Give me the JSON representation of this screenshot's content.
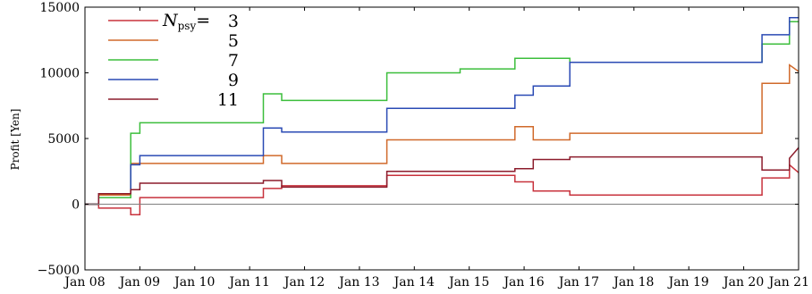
{
  "chart_data": {
    "type": "line",
    "title": "",
    "xlabel": "",
    "ylabel": "Profit [Yen]",
    "ylim": [
      -5000,
      15000
    ],
    "xlim": [
      "2000-01-08",
      "2000-01-21"
    ],
    "yticks": [
      -5000,
      0,
      5000,
      10000,
      15000
    ],
    "ytick_labels": [
      "−5000",
      "0",
      "5000",
      "10000",
      "15000"
    ],
    "xticks": [
      "Jan 08",
      "Jan 09",
      "Jan 10",
      "Jan 11",
      "Jan 12",
      "Jan 13",
      "Jan 14",
      "Jan 15",
      "Jan 16",
      "Jan 17",
      "Jan 18",
      "Jan 19",
      "Jan 20",
      "Jan 21"
    ],
    "grid": false,
    "zero_line": true,
    "legend": {
      "placement": "top-left",
      "param_symbol": "N",
      "param_subscript": "psy",
      "param_equals": "="
    },
    "series": [
      {
        "name": "3",
        "color": "#c8323c",
        "x": [
          "2000-01-08",
          "2000-01-08 06:00",
          "2000-01-08 06:00",
          "2000-01-08 20:00",
          "2000-01-08 20:00",
          "2000-01-09 00:00",
          "2000-01-09 00:00",
          "2000-01-11 06:00",
          "2000-01-11 06:00",
          "2000-01-11 14:00",
          "2000-01-11 14:00",
          "2000-01-13 12:00",
          "2000-01-13 12:00",
          "2000-01-15 20:00",
          "2000-01-15 20:00",
          "2000-01-16 04:00",
          "2000-01-16 04:00",
          "2000-01-16 20:00",
          "2000-01-16 20:00",
          "2000-01-20 08:00",
          "2000-01-20 08:00",
          "2000-01-20 20:00",
          "2000-01-20 20:00",
          "2000-01-21"
        ],
        "values": [
          0,
          0,
          -300,
          -300,
          -800,
          -800,
          500,
          500,
          1200,
          1200,
          1400,
          1400,
          2200,
          2200,
          1700,
          1700,
          1000,
          1000,
          700,
          700,
          2000,
          2000,
          3000,
          2400
        ]
      },
      {
        "name": "5",
        "color": "#d0692a",
        "x": [
          "2000-01-08",
          "2000-01-08 06:00",
          "2000-01-08 06:00",
          "2000-01-08 20:00",
          "2000-01-08 20:00",
          "2000-01-11 06:00",
          "2000-01-11 06:00",
          "2000-01-11 14:00",
          "2000-01-11 14:00",
          "2000-01-13 12:00",
          "2000-01-13 12:00",
          "2000-01-15 20:00",
          "2000-01-15 20:00",
          "2000-01-16 04:00",
          "2000-01-16 04:00",
          "2000-01-16 20:00",
          "2000-01-16 20:00",
          "2000-01-20 08:00",
          "2000-01-20 08:00",
          "2000-01-20 20:00",
          "2000-01-20 20:00",
          "2000-01-21"
        ],
        "values": [
          0,
          0,
          700,
          700,
          3100,
          3100,
          3700,
          3700,
          3100,
          3100,
          4900,
          4900,
          5900,
          5900,
          4900,
          4900,
          5400,
          5400,
          9200,
          9200,
          10600,
          10100
        ]
      },
      {
        "name": "7",
        "color": "#3cbe3c",
        "x": [
          "2000-01-08",
          "2000-01-08 06:00",
          "2000-01-08 06:00",
          "2000-01-08 20:00",
          "2000-01-08 20:00",
          "2000-01-09 00:00",
          "2000-01-09 00:00",
          "2000-01-11 06:00",
          "2000-01-11 06:00",
          "2000-01-11 14:00",
          "2000-01-11 14:00",
          "2000-01-13 12:00",
          "2000-01-13 12:00",
          "2000-01-14 20:00",
          "2000-01-14 20:00",
          "2000-01-15 20:00",
          "2000-01-15 20:00",
          "2000-01-16 20:00",
          "2000-01-16 20:00",
          "2000-01-20 08:00",
          "2000-01-20 08:00",
          "2000-01-20 20:00",
          "2000-01-20 20:00",
          "2000-01-21"
        ],
        "values": [
          0,
          0,
          500,
          500,
          5400,
          5400,
          6200,
          6200,
          8400,
          8400,
          7900,
          7900,
          10000,
          10000,
          10300,
          10300,
          11100,
          11100,
          10800,
          10800,
          12200,
          12200,
          13900,
          13900
        ]
      },
      {
        "name": "9",
        "color": "#2a4ab4",
        "x": [
          "2000-01-08",
          "2000-01-08 06:00",
          "2000-01-08 06:00",
          "2000-01-08 20:00",
          "2000-01-08 20:00",
          "2000-01-09 00:00",
          "2000-01-09 00:00",
          "2000-01-11 06:00",
          "2000-01-11 06:00",
          "2000-01-11 14:00",
          "2000-01-11 14:00",
          "2000-01-13 12:00",
          "2000-01-13 12:00",
          "2000-01-15 20:00",
          "2000-01-15 20:00",
          "2000-01-16 04:00",
          "2000-01-16 04:00",
          "2000-01-16 20:00",
          "2000-01-16 20:00",
          "2000-01-20 08:00",
          "2000-01-20 08:00",
          "2000-01-20 20:00",
          "2000-01-20 20:00",
          "2000-01-21"
        ],
        "values": [
          0,
          0,
          800,
          800,
          3000,
          3000,
          3700,
          3700,
          5800,
          5800,
          5500,
          5500,
          7300,
          7300,
          8300,
          8300,
          9000,
          9000,
          10800,
          10800,
          12900,
          12900,
          14200,
          14200
        ]
      },
      {
        "name": "11",
        "color": "#8c1c2c",
        "x": [
          "2000-01-08",
          "2000-01-08 06:00",
          "2000-01-08 06:00",
          "2000-01-08 20:00",
          "2000-01-08 20:00",
          "2000-01-09 00:00",
          "2000-01-09 00:00",
          "2000-01-11 06:00",
          "2000-01-11 06:00",
          "2000-01-11 14:00",
          "2000-01-11 14:00",
          "2000-01-13 12:00",
          "2000-01-13 12:00",
          "2000-01-15 20:00",
          "2000-01-15 20:00",
          "2000-01-16 04:00",
          "2000-01-16 04:00",
          "2000-01-16 20:00",
          "2000-01-16 20:00",
          "2000-01-20 08:00",
          "2000-01-20 08:00",
          "2000-01-20 20:00",
          "2000-01-20 20:00",
          "2000-01-21"
        ],
        "values": [
          0,
          0,
          800,
          800,
          1100,
          1100,
          1600,
          1600,
          1800,
          1800,
          1300,
          1300,
          2500,
          2500,
          2700,
          2700,
          3400,
          3400,
          3600,
          3600,
          2600,
          2600,
          3500,
          4300
        ]
      }
    ]
  }
}
